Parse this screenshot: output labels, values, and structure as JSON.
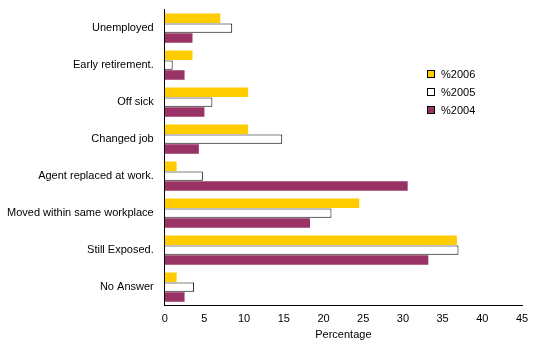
{
  "chart_data": {
    "type": "bar",
    "orientation": "horizontal",
    "x_label": "Percentage",
    "categories": [
      "Unemployed",
      "Early retirement.",
      "Off sick",
      "Changed job",
      "Agent replaced at work.",
      "Moved within same workplace",
      "Still Exposed.",
      "No Answer"
    ],
    "series": [
      {
        "name": "%2006",
        "color": "#ffcc00",
        "values": [
          7,
          3.5,
          10.5,
          10.5,
          1.5,
          24.5,
          36.8,
          1.5
        ]
      },
      {
        "name": "%2005",
        "color": "#ffffff",
        "values": [
          8.5,
          1,
          6,
          14.8,
          4.8,
          21,
          37,
          3.7
        ]
      },
      {
        "name": "%2004",
        "color": "#993366",
        "values": [
          3.5,
          2.5,
          5,
          4.3,
          30.6,
          18.3,
          33.2,
          2.5
        ]
      }
    ],
    "xlim": [
      0,
      45
    ],
    "xticks": [
      0,
      5,
      10,
      15,
      20,
      25,
      30,
      35,
      40,
      45
    ],
    "grid": false,
    "legend": "upper right"
  }
}
